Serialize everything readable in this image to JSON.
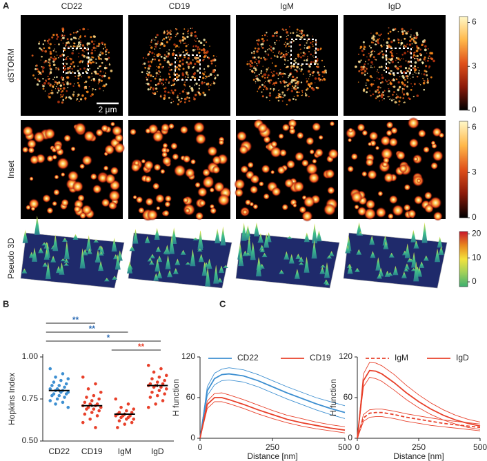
{
  "figure": {
    "panel_labels": [
      "A",
      "B",
      "C"
    ],
    "columns": [
      "CD22",
      "CD19",
      "IgM",
      "IgD"
    ],
    "rows": [
      "dSTORM",
      "Inset",
      "Pseudo 3D"
    ],
    "scale_bar": "2 μm",
    "colorbars": [
      {
        "lim": [
          0,
          6.4
        ],
        "ticks": [
          0,
          3,
          6
        ],
        "colors": [
          "#000000",
          "#8b1a0a",
          "#e0501a",
          "#ffb84a",
          "#fff8c8"
        ]
      },
      {
        "lim": [
          0,
          6.4
        ],
        "ticks": [
          0,
          3,
          6
        ],
        "colors": [
          "#000000",
          "#8b1a0a",
          "#e0501a",
          "#ffb84a",
          "#fff8c8"
        ]
      },
      {
        "lim": [
          -2,
          21
        ],
        "ticks": [
          0,
          10,
          20
        ],
        "colors": [
          "#3daf6e",
          "#9fd05a",
          "#f3e23c",
          "#e8861e",
          "#c8162a"
        ]
      }
    ]
  },
  "chart_data": [
    {
      "type": "strip",
      "ylabel": "Hopkins Index",
      "categories": [
        "CD22",
        "CD19",
        "IgM",
        "IgD"
      ],
      "ylim": [
        0.5,
        1.0
      ],
      "yticks": [
        {
          "value": 0.5,
          "label": "0.50"
        },
        {
          "value": 0.75,
          "label": "0.75"
        },
        {
          "value": 1.0,
          "label": "1.00"
        }
      ],
      "groups": [
        {
          "color": "#3d8fd1",
          "mean": 0.8,
          "error": 0.007,
          "values": [
            0.93,
            0.9,
            0.88,
            0.87,
            0.86,
            0.85,
            0.84,
            0.83,
            0.83,
            0.82,
            0.81,
            0.81,
            0.8,
            0.8,
            0.79,
            0.79,
            0.78,
            0.78,
            0.77,
            0.77,
            0.76,
            0.75,
            0.74,
            0.73,
            0.72,
            0.7
          ]
        },
        {
          "color": "#e8402a",
          "mean": 0.71,
          "error": 0.008,
          "values": [
            0.88,
            0.84,
            0.81,
            0.79,
            0.77,
            0.76,
            0.75,
            0.74,
            0.73,
            0.72,
            0.72,
            0.71,
            0.71,
            0.7,
            0.7,
            0.69,
            0.69,
            0.68,
            0.67,
            0.66,
            0.65,
            0.63,
            0.61,
            0.58
          ]
        },
        {
          "color": "#e8402a",
          "mean": 0.66,
          "error": 0.006,
          "values": [
            0.75,
            0.72,
            0.7,
            0.69,
            0.68,
            0.67,
            0.67,
            0.66,
            0.66,
            0.65,
            0.65,
            0.65,
            0.64,
            0.64,
            0.63,
            0.63,
            0.62,
            0.61,
            0.6,
            0.58
          ]
        },
        {
          "color": "#e8402a",
          "mean": 0.83,
          "error": 0.008,
          "values": [
            0.95,
            0.93,
            0.91,
            0.89,
            0.88,
            0.87,
            0.86,
            0.85,
            0.84,
            0.84,
            0.83,
            0.83,
            0.82,
            0.82,
            0.81,
            0.8,
            0.79,
            0.78,
            0.77,
            0.76,
            0.74,
            0.72,
            0.7
          ]
        }
      ],
      "significance": [
        {
          "from": 0,
          "to": 1,
          "label": "**",
          "color": "#2f6db5"
        },
        {
          "from": 0,
          "to": 2,
          "label": "**",
          "color": "#2f6db5"
        },
        {
          "from": 0,
          "to": 3,
          "label": "*",
          "color": "#2f6db5"
        },
        {
          "from": 2,
          "to": 3,
          "label": "**",
          "color": "#e8402a"
        }
      ]
    },
    {
      "type": "line",
      "xlabel": "Distance [nm]",
      "ylabel": "H function",
      "x": [
        0,
        25,
        50,
        75,
        100,
        150,
        200,
        250,
        300,
        350,
        400,
        450,
        500
      ],
      "xlim": [
        0,
        500
      ],
      "xticks": [
        0,
        250,
        500
      ],
      "ylim": [
        0,
        120
      ],
      "yticks": [
        0,
        60,
        120
      ],
      "series": [
        {
          "name": "CD22",
          "color": "#3d8fd1",
          "dashed": false,
          "values": [
            0,
            70,
            88,
            94,
            95,
            92,
            85,
            76,
            67,
            59,
            51,
            44,
            38
          ],
          "upper": [
            0,
            76,
            96,
            102,
            104,
            101,
            94,
            85,
            76,
            68,
            60,
            54,
            48
          ],
          "lower": [
            0,
            63,
            79,
            85,
            86,
            83,
            76,
            67,
            58,
            50,
            42,
            35,
            29
          ]
        },
        {
          "name": "CD19",
          "color": "#e8402a",
          "dashed": false,
          "values": [
            0,
            50,
            60,
            60,
            57,
            50,
            42,
            35,
            28,
            23,
            19,
            15,
            12
          ],
          "upper": [
            0,
            55,
            66,
            67,
            64,
            57,
            49,
            41,
            34,
            29,
            24,
            20,
            17
          ],
          "lower": [
            0,
            44,
            54,
            54,
            51,
            44,
            36,
            29,
            23,
            18,
            14,
            11,
            8
          ]
        }
      ]
    },
    {
      "type": "line",
      "xlabel": "Distance [nm]",
      "ylabel": "H function",
      "x": [
        0,
        25,
        50,
        75,
        100,
        150,
        200,
        250,
        300,
        350,
        400,
        450,
        500
      ],
      "xlim": [
        0,
        500
      ],
      "xticks": [
        0,
        250,
        500
      ],
      "ylim": [
        0,
        120
      ],
      "yticks": [
        0,
        60,
        120
      ],
      "series": [
        {
          "name": "IgM",
          "color": "#e8402a",
          "dashed": true,
          "values": [
            0,
            30,
            37,
            38,
            38,
            35,
            31,
            28,
            25,
            22,
            20,
            18,
            16
          ],
          "upper": [
            0,
            35,
            42,
            43,
            43,
            40,
            36,
            33,
            30,
            27,
            25,
            23,
            21
          ],
          "lower": [
            0,
            25,
            31,
            32,
            32,
            29,
            25,
            22,
            19,
            17,
            15,
            13,
            11
          ]
        },
        {
          "name": "IgD",
          "color": "#e8402a",
          "dashed": false,
          "values": [
            0,
            85,
            100,
            99,
            95,
            82,
            67,
            54,
            43,
            34,
            27,
            22,
            18
          ],
          "upper": [
            0,
            95,
            112,
            111,
            107,
            94,
            78,
            64,
            52,
            42,
            34,
            28,
            24
          ],
          "lower": [
            0,
            76,
            90,
            88,
            84,
            71,
            57,
            45,
            35,
            27,
            21,
            16,
            13
          ]
        }
      ]
    }
  ]
}
